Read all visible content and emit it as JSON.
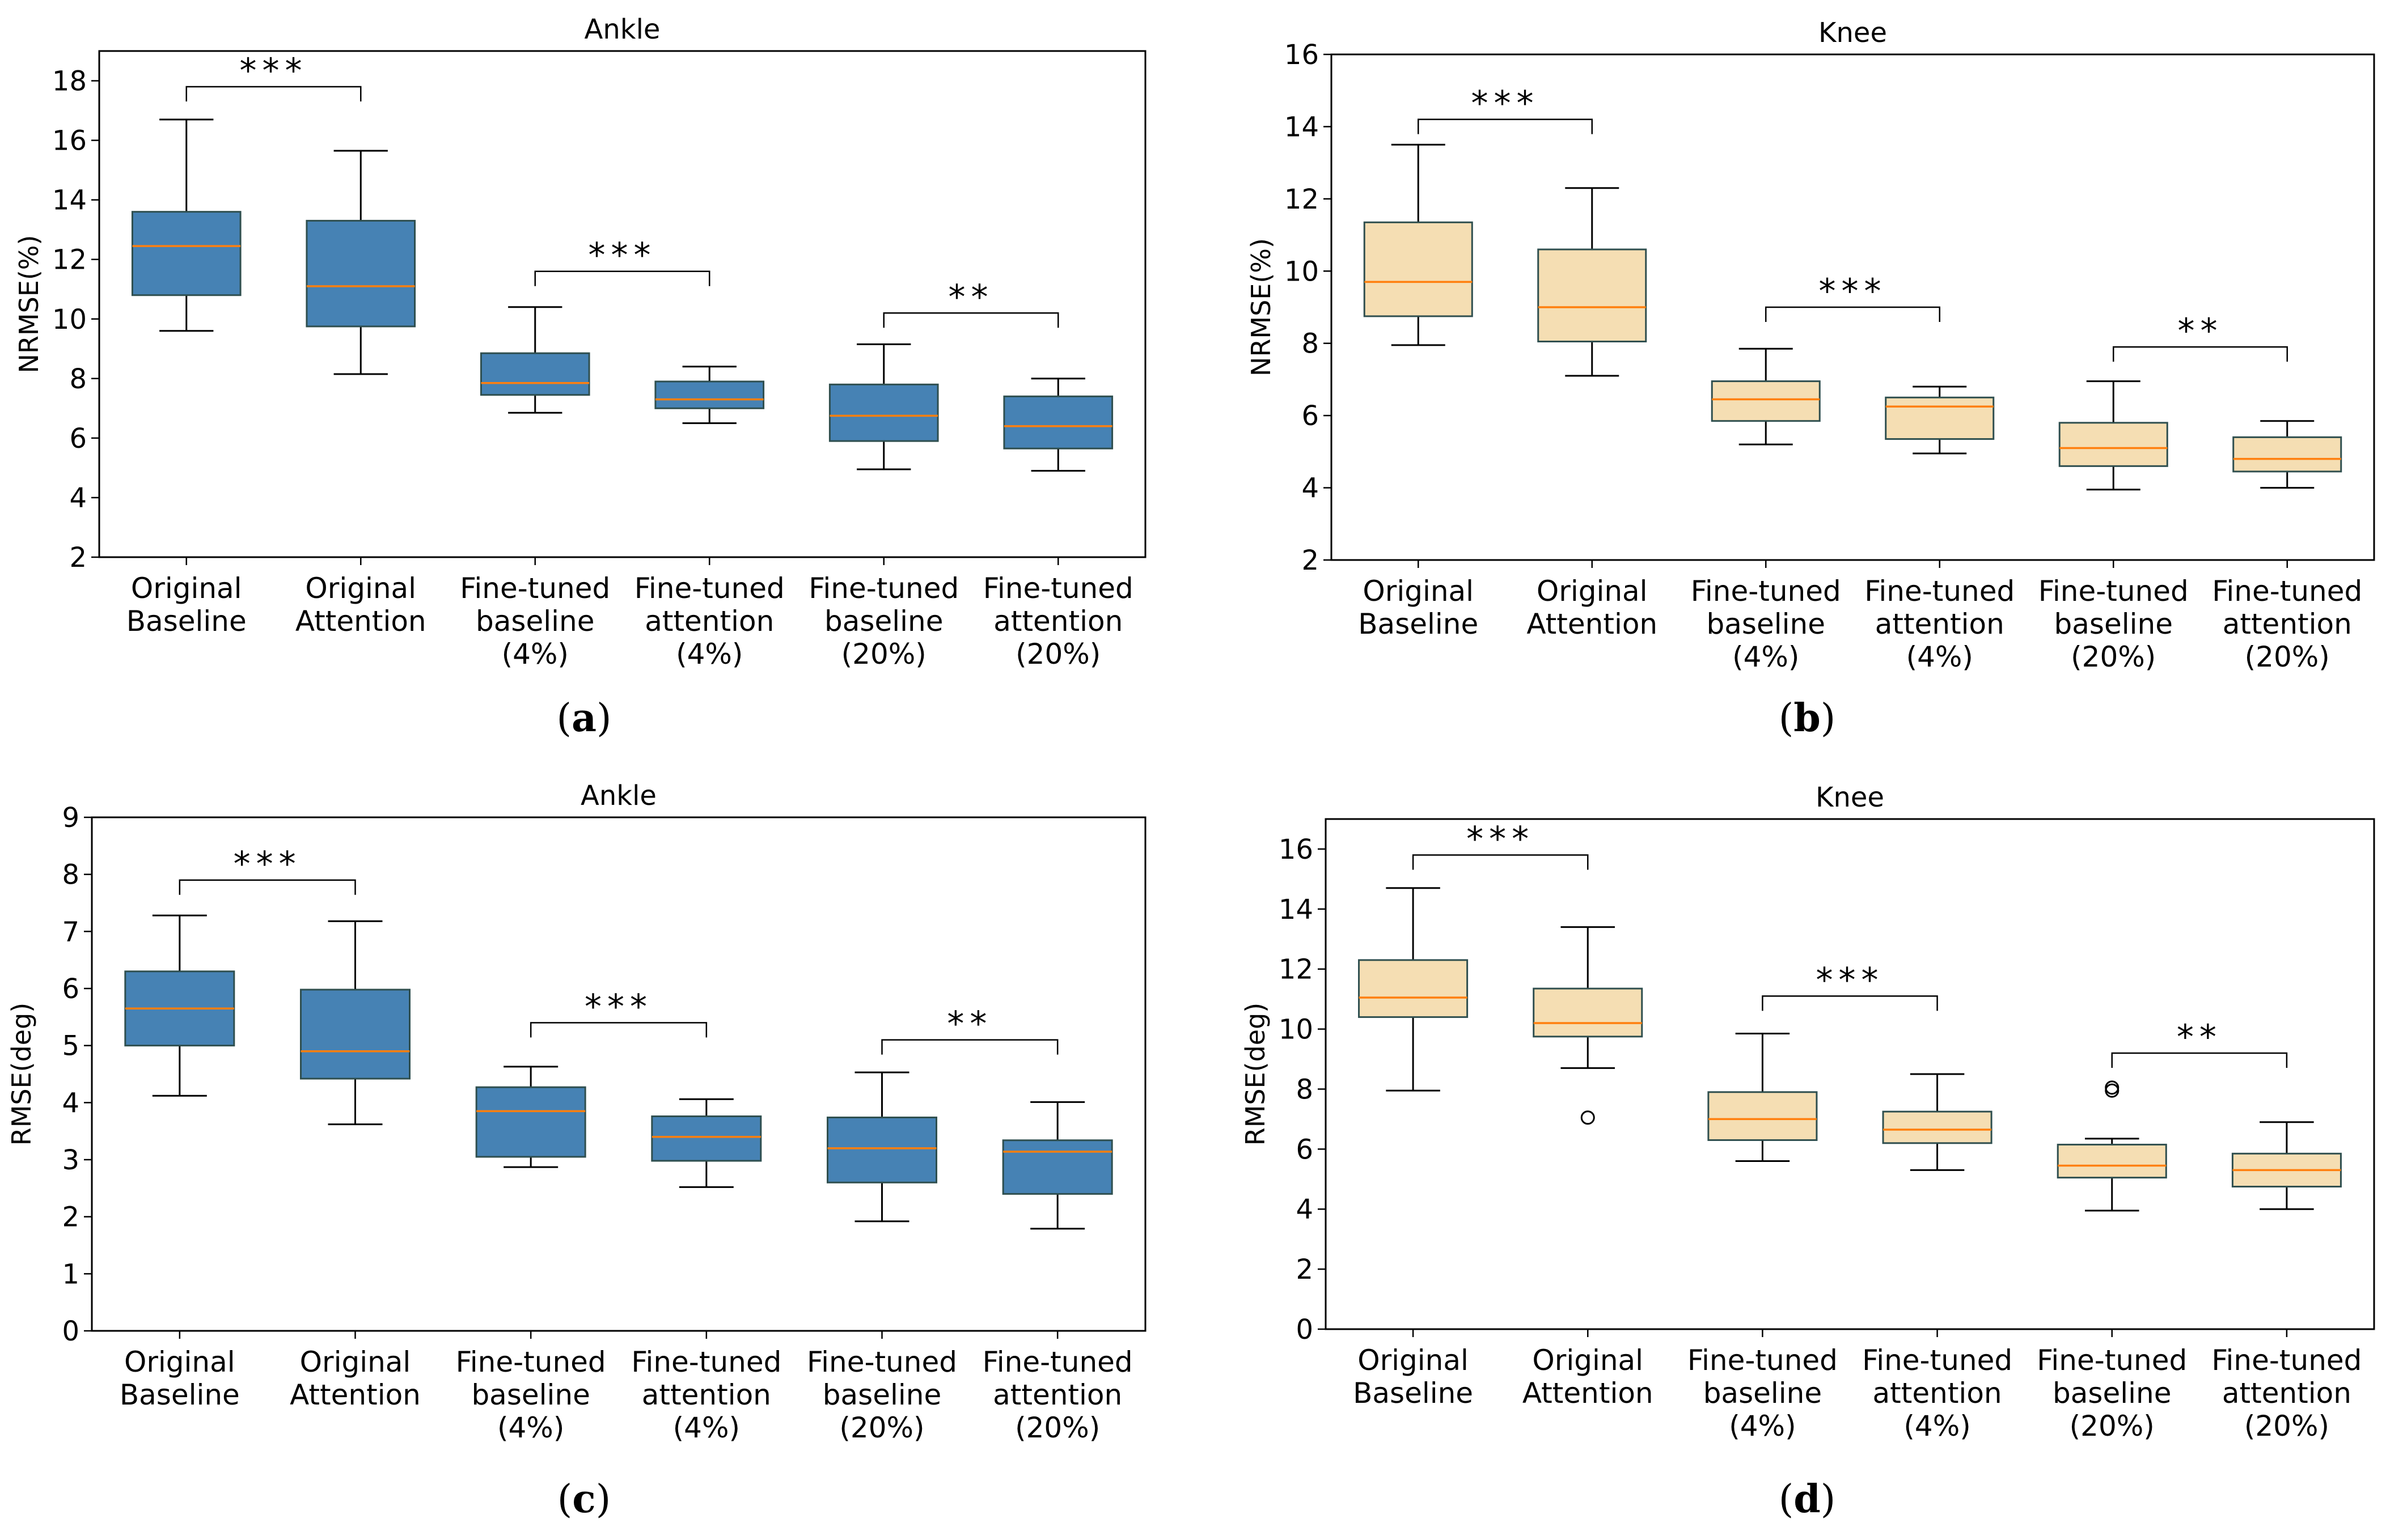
{
  "chart_data": [
    {
      "type": "boxplot",
      "panel": "a",
      "title": "Ankle",
      "ylabel": "NRMSE(%)",
      "ylim": [
        2,
        19
      ],
      "yticks": [
        2,
        4,
        6,
        8,
        10,
        12,
        14,
        16,
        18
      ],
      "box_color": "#4682b4",
      "categories": [
        [
          "Original",
          "Baseline"
        ],
        [
          "Original",
          "Attention"
        ],
        [
          "Fine-tuned",
          "baseline",
          "(4%)"
        ],
        [
          "Fine-tuned",
          "attention",
          "(4%)"
        ],
        [
          "Fine-tuned",
          "baseline",
          "(20%)"
        ],
        [
          "Fine-tuned",
          "attention",
          "(20%)"
        ]
      ],
      "boxes": [
        {
          "whislo": 9.6,
          "q1": 10.8,
          "med": 12.45,
          "q3": 13.6,
          "whishi": 16.7,
          "fliers": []
        },
        {
          "whislo": 8.15,
          "q1": 9.75,
          "med": 11.1,
          "q3": 13.3,
          "whishi": 15.65,
          "fliers": []
        },
        {
          "whislo": 6.85,
          "q1": 7.45,
          "med": 7.85,
          "q3": 8.85,
          "whishi": 10.4,
          "fliers": []
        },
        {
          "whislo": 6.5,
          "q1": 7.0,
          "med": 7.3,
          "q3": 7.9,
          "whishi": 8.4,
          "fliers": []
        },
        {
          "whislo": 4.95,
          "q1": 5.9,
          "med": 6.75,
          "q3": 7.8,
          "whishi": 9.15,
          "fliers": []
        },
        {
          "whislo": 4.9,
          "q1": 5.65,
          "med": 6.4,
          "q3": 7.4,
          "whishi": 8.0,
          "fliers": []
        }
      ],
      "significance": [
        {
          "pair": [
            0,
            1
          ],
          "label": "***",
          "y": 17.8
        },
        {
          "pair": [
            2,
            3
          ],
          "label": "***",
          "y": 11.6
        },
        {
          "pair": [
            4,
            5
          ],
          "label": "**",
          "y": 10.2
        }
      ]
    },
    {
      "type": "boxplot",
      "panel": "b",
      "title": "Knee",
      "ylabel": "NRMSE(%)",
      "ylim": [
        2,
        16
      ],
      "yticks": [
        2,
        4,
        6,
        8,
        10,
        12,
        14,
        16
      ],
      "box_color": "#f5deb3",
      "categories": [
        [
          "Original",
          "Baseline"
        ],
        [
          "Original",
          "Attention"
        ],
        [
          "Fine-tuned",
          "baseline",
          "(4%)"
        ],
        [
          "Fine-tuned",
          "attention",
          "(4%)"
        ],
        [
          "Fine-tuned",
          "baseline",
          "(20%)"
        ],
        [
          "Fine-tuned",
          "attention",
          "(20%)"
        ]
      ],
      "boxes": [
        {
          "whislo": 7.95,
          "q1": 8.75,
          "med": 9.7,
          "q3": 11.35,
          "whishi": 13.5,
          "fliers": []
        },
        {
          "whislo": 7.1,
          "q1": 8.05,
          "med": 9.0,
          "q3": 10.6,
          "whishi": 12.3,
          "fliers": []
        },
        {
          "whislo": 5.2,
          "q1": 5.85,
          "med": 6.45,
          "q3": 6.95,
          "whishi": 7.85,
          "fliers": []
        },
        {
          "whislo": 4.95,
          "q1": 5.35,
          "med": 6.25,
          "q3": 6.5,
          "whishi": 6.8,
          "fliers": []
        },
        {
          "whislo": 3.95,
          "q1": 4.6,
          "med": 5.1,
          "q3": 5.8,
          "whishi": 6.95,
          "fliers": []
        },
        {
          "whislo": 4.0,
          "q1": 4.45,
          "med": 4.8,
          "q3": 5.4,
          "whishi": 5.85,
          "fliers": []
        }
      ],
      "significance": [
        {
          "pair": [
            0,
            1
          ],
          "label": "***",
          "y": 14.2
        },
        {
          "pair": [
            2,
            3
          ],
          "label": "***",
          "y": 9.0
        },
        {
          "pair": [
            4,
            5
          ],
          "label": "**",
          "y": 7.9
        }
      ]
    },
    {
      "type": "boxplot",
      "panel": "c",
      "title": "Ankle",
      "ylabel": "RMSE(deg)",
      "ylim": [
        0,
        9
      ],
      "yticks": [
        0,
        1,
        2,
        3,
        4,
        5,
        6,
        7,
        8,
        9
      ],
      "box_color": "#4682b4",
      "categories": [
        [
          "Original",
          "Baseline"
        ],
        [
          "Original",
          "Attention"
        ],
        [
          "Fine-tuned",
          "baseline",
          "(4%)"
        ],
        [
          "Fine-tuned",
          "attention",
          "(4%)"
        ],
        [
          "Fine-tuned",
          "baseline",
          "(20%)"
        ],
        [
          "Fine-tuned",
          "attention",
          "(20%)"
        ]
      ],
      "boxes": [
        {
          "whislo": 4.12,
          "q1": 5.0,
          "med": 5.65,
          "q3": 6.3,
          "whishi": 7.28,
          "fliers": []
        },
        {
          "whislo": 3.62,
          "q1": 4.42,
          "med": 4.9,
          "q3": 5.98,
          "whishi": 7.18,
          "fliers": []
        },
        {
          "whislo": 2.87,
          "q1": 3.05,
          "med": 3.85,
          "q3": 4.27,
          "whishi": 4.63,
          "fliers": []
        },
        {
          "whislo": 2.52,
          "q1": 2.98,
          "med": 3.4,
          "q3": 3.76,
          "whishi": 4.06,
          "fliers": []
        },
        {
          "whislo": 1.92,
          "q1": 2.6,
          "med": 3.2,
          "q3": 3.74,
          "whishi": 4.53,
          "fliers": []
        },
        {
          "whislo": 1.79,
          "q1": 2.4,
          "med": 3.14,
          "q3": 3.34,
          "whishi": 4.01,
          "fliers": []
        }
      ],
      "significance": [
        {
          "pair": [
            0,
            1
          ],
          "label": "***",
          "y": 7.9
        },
        {
          "pair": [
            2,
            3
          ],
          "label": "***",
          "y": 5.4
        },
        {
          "pair": [
            4,
            5
          ],
          "label": "**",
          "y": 5.1
        }
      ]
    },
    {
      "type": "boxplot",
      "panel": "d",
      "title": "Knee",
      "ylabel": "RMSE(deg)",
      "ylim": [
        0,
        17
      ],
      "yticks": [
        0,
        2,
        4,
        6,
        8,
        10,
        12,
        14,
        16
      ],
      "box_color": "#f5deb3",
      "categories": [
        [
          "Original",
          "Baseline"
        ],
        [
          "Original",
          "Attention"
        ],
        [
          "Fine-tuned",
          "baseline",
          "(4%)"
        ],
        [
          "Fine-tuned",
          "attention",
          "(4%)"
        ],
        [
          "Fine-tuned",
          "baseline",
          "(20%)"
        ],
        [
          "Fine-tuned",
          "attention",
          "(20%)"
        ]
      ],
      "boxes": [
        {
          "whislo": 7.95,
          "q1": 10.4,
          "med": 11.05,
          "q3": 12.3,
          "whishi": 14.7,
          "fliers": []
        },
        {
          "whislo": 8.7,
          "q1": 9.75,
          "med": 10.2,
          "q3": 11.35,
          "whishi": 13.4,
          "fliers": [
            7.05
          ]
        },
        {
          "whislo": 5.6,
          "q1": 6.3,
          "med": 7.0,
          "q3": 7.9,
          "whishi": 9.85,
          "fliers": []
        },
        {
          "whislo": 5.3,
          "q1": 6.2,
          "med": 6.65,
          "q3": 7.25,
          "whishi": 8.5,
          "fliers": []
        },
        {
          "whislo": 3.95,
          "q1": 5.05,
          "med": 5.45,
          "q3": 6.15,
          "whishi": 6.35,
          "fliers": [
            7.95,
            8.05
          ]
        },
        {
          "whislo": 4.0,
          "q1": 4.75,
          "med": 5.3,
          "q3": 5.85,
          "whishi": 6.9,
          "fliers": []
        }
      ],
      "significance": [
        {
          "pair": [
            0,
            1
          ],
          "label": "***",
          "y": 15.8
        },
        {
          "pair": [
            2,
            3
          ],
          "label": "***",
          "y": 11.1
        },
        {
          "pair": [
            4,
            5
          ],
          "label": "**",
          "y": 9.2
        }
      ]
    }
  ],
  "panel_labels": [
    "a",
    "b",
    "c",
    "d"
  ],
  "colors": {
    "median": "#ff7f0e",
    "blue_box": "#4682b4",
    "wheat_box": "#f5deb3",
    "box_edge": "#2f4f4f",
    "axis": "#000000"
  }
}
